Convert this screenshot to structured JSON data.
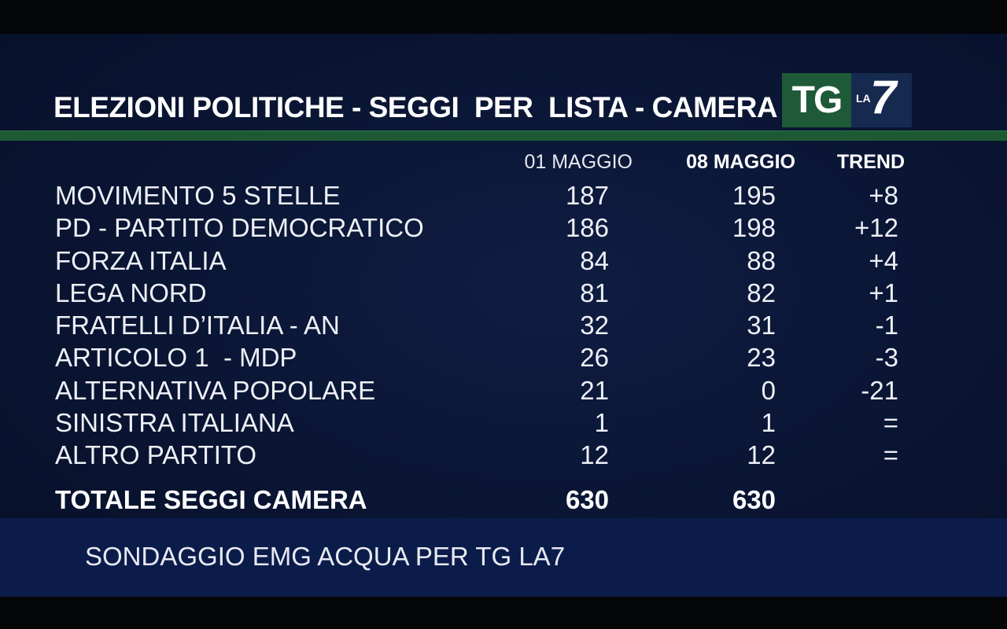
{
  "header": {
    "title": "ELEZIONI POLITICHE - SEGGI  PER  LISTA - CAMERA",
    "logo_tg": "TG",
    "logo_la": "LA",
    "logo_7": "7"
  },
  "columns": {
    "date1": "01 MAGGIO",
    "date2": "08 MAGGIO",
    "trend": "TREND"
  },
  "rows": [
    {
      "name": "MOVIMENTO 5 STELLE",
      "v1": "187",
      "v2": "195",
      "trend": "+8"
    },
    {
      "name": "PD - PARTITO DEMOCRATICO",
      "v1": "186",
      "v2": "198",
      "trend": "+12"
    },
    {
      "name": "FORZA ITALIA",
      "v1": "84",
      "v2": "88",
      "trend": "+4"
    },
    {
      "name": "LEGA NORD",
      "v1": "81",
      "v2": "82",
      "trend": "+1"
    },
    {
      "name": "FRATELLI D’ITALIA - AN",
      "v1": "32",
      "v2": "31",
      "trend": "-1"
    },
    {
      "name": "ARTICOLO 1  - MDP",
      "v1": "26",
      "v2": "23",
      "trend": "-3"
    },
    {
      "name": "ALTERNATIVA POPOLARE",
      "v1": "21",
      "v2": "0",
      "trend": "-21"
    },
    {
      "name": "SINISTRA ITALIANA",
      "v1": "1",
      "v2": "1",
      "trend": "="
    },
    {
      "name": "ALTRO PARTITO",
      "v1": "12",
      "v2": "12",
      "trend": "="
    }
  ],
  "total": {
    "label": "TOTALE SEGGI CAMERA",
    "v1": "630",
    "v2": "630"
  },
  "footer": {
    "source": "SONDAGGIO EMG ACQUA PER TG LA7"
  },
  "colors": {
    "background": "#0a1533",
    "accent_green": "#1d5a34",
    "footer": "#0c1c4a"
  }
}
